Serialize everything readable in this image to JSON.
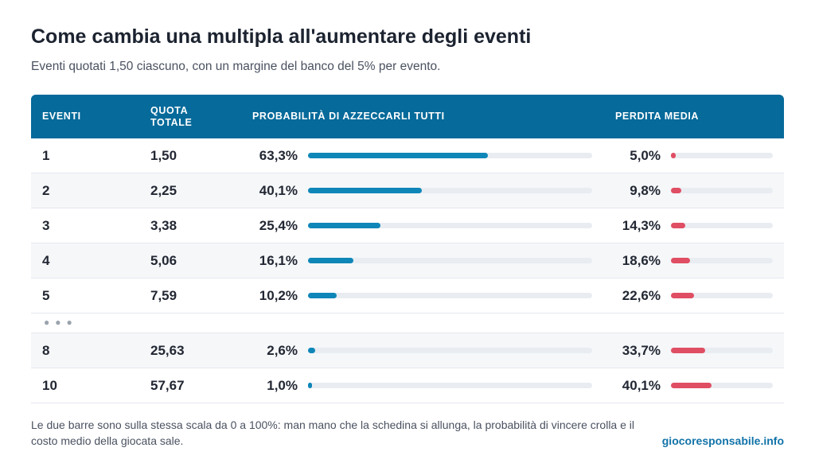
{
  "title": "Come cambia una multipla all'aumentare degli eventi",
  "subtitle": "Eventi quotati 1,50 ciascuno, con un margine del banco del 5% per evento.",
  "columns": {
    "events": "EVENTI",
    "odds": "QUOTA TOTALE",
    "probability": "PROBABILITÀ DI AZZECCARLI TUTTI",
    "loss": "PERDITA MEDIA"
  },
  "colors": {
    "header": "#066a9a",
    "probability_bar": "#0f86b8",
    "loss_bar": "#e04e63",
    "track": "#e9edf2"
  },
  "chart_data": {
    "type": "table",
    "bar_scale": [
      0,
      100
    ],
    "rows": [
      {
        "events": "1",
        "odds": "1,50",
        "probability": "63,3%",
        "loss": "5,0%",
        "prob_value": 63.3,
        "loss_value": 5.0
      },
      {
        "events": "2",
        "odds": "2,25",
        "probability": "40,1%",
        "loss": "9,8%",
        "prob_value": 40.1,
        "loss_value": 9.8
      },
      {
        "events": "3",
        "odds": "3,38",
        "probability": "25,4%",
        "loss": "14,3%",
        "prob_value": 25.4,
        "loss_value": 14.3
      },
      {
        "events": "4",
        "odds": "5,06",
        "probability": "16,1%",
        "loss": "18,6%",
        "prob_value": 16.1,
        "loss_value": 18.6
      },
      {
        "events": "5",
        "odds": "7,59",
        "probability": "10,2%",
        "loss": "22,6%",
        "prob_value": 10.2,
        "loss_value": 22.6
      },
      {
        "ellipsis": true
      },
      {
        "events": "8",
        "odds": "25,63",
        "probability": "2,6%",
        "loss": "33,7%",
        "prob_value": 2.6,
        "loss_value": 33.7
      },
      {
        "events": "10",
        "odds": "57,67",
        "probability": "1,0%",
        "loss": "40,1%",
        "prob_value": 1.0,
        "loss_value": 40.1
      }
    ]
  },
  "footnote": "Le due barre sono sulla stessa scala da 0 a 100%: man mano che la schedina si allunga, la probabilità di vincere crolla e il costo medio della giocata sale.",
  "source": "giocoresponsabile.info"
}
